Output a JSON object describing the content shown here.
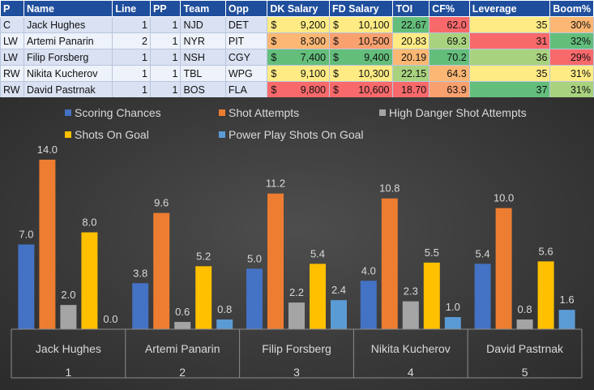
{
  "table": {
    "headers": [
      "P",
      "Name",
      "Line",
      "PP",
      "Team",
      "Opp",
      "DK Salary",
      "FD Salary",
      "TOI",
      "CF%",
      "Leverage",
      "Boom%"
    ],
    "currency_symbol": "$",
    "rows": [
      {
        "pos": "C",
        "name": "Jack Hughes",
        "line": "1",
        "pp": "1",
        "team": "NJD",
        "opp": "DET",
        "dk": "9,200",
        "fd": "10,100",
        "toi": "22.67",
        "cf": "62.0",
        "leverage": "35",
        "boom": "30%",
        "colors": {
          "dk": "#ffeb84",
          "fd": "#ffeb84",
          "toi": "#63be7b",
          "cf": "#f8696b",
          "leverage": "#ffeb84",
          "boom": "#fbb773"
        }
      },
      {
        "pos": "LW",
        "name": "Artemi Panarin",
        "line": "2",
        "pp": "1",
        "team": "NYR",
        "opp": "PIT",
        "dk": "8,300",
        "fd": "10,500",
        "toi": "20.83",
        "cf": "69.3",
        "leverage": "31",
        "boom": "32%",
        "colors": {
          "dk": "#fbb773",
          "fd": "#f9a06f",
          "toi": "#ffeb84",
          "cf": "#a9d27f",
          "leverage": "#f8696b",
          "boom": "#63be7b"
        }
      },
      {
        "pos": "LW",
        "name": "Filip Forsberg",
        "line": "1",
        "pp": "1",
        "team": "NSH",
        "opp": "CGY",
        "dk": "7,400",
        "fd": "9,400",
        "toi": "20.19",
        "cf": "70.2",
        "leverage": "36",
        "boom": "29%",
        "colors": {
          "dk": "#63be7b",
          "fd": "#63be7b",
          "toi": "#fbb773",
          "cf": "#63be7b",
          "leverage": "#a9d27f",
          "boom": "#f8696b"
        }
      },
      {
        "pos": "RW",
        "name": "Nikita Kucherov",
        "line": "1",
        "pp": "1",
        "team": "TBL",
        "opp": "WPG",
        "dk": "9,100",
        "fd": "10,300",
        "toi": "22.15",
        "cf": "64.3",
        "leverage": "35",
        "boom": "31%",
        "colors": {
          "dk": "#ffeb84",
          "fd": "#ffeb84",
          "toi": "#a9d27f",
          "cf": "#fbb773",
          "leverage": "#ffeb84",
          "boom": "#ffeb84"
        }
      },
      {
        "pos": "RW",
        "name": "David Pastrnak",
        "line": "1",
        "pp": "1",
        "team": "BOS",
        "opp": "FLA",
        "dk": "9,800",
        "fd": "10,600",
        "toi": "18.70",
        "cf": "63.9",
        "leverage": "37",
        "boom": "31%",
        "colors": {
          "dk": "#f8696b",
          "fd": "#f8696b",
          "toi": "#f8696b",
          "cf": "#f9a06f",
          "leverage": "#63be7b",
          "boom": "#a9d27f"
        }
      }
    ]
  },
  "chart_data": {
    "type": "bar",
    "categories": [
      "Jack Hughes",
      "Artemi Panarin",
      "Filip Forsberg",
      "Nikita Kucherov",
      "David Pastrnak"
    ],
    "category_numbers": [
      "1",
      "2",
      "3",
      "4",
      "5"
    ],
    "ylim": [
      0,
      15
    ],
    "grid": false,
    "legend_position": "top",
    "series": [
      {
        "name": "Scoring Chances",
        "color": "#4472c4",
        "values": [
          7.0,
          3.8,
          5.0,
          4.0,
          5.4
        ]
      },
      {
        "name": "Shot Attempts",
        "color": "#ed7d31",
        "values": [
          14.0,
          9.6,
          11.2,
          10.8,
          10.0
        ]
      },
      {
        "name": "High Danger Shot Attempts",
        "color": "#a5a5a5",
        "values": [
          2.0,
          0.6,
          2.2,
          2.3,
          0.8
        ]
      },
      {
        "name": "Shots On Goal",
        "color": "#ffc000",
        "values": [
          8.0,
          5.2,
          5.4,
          5.5,
          5.6
        ]
      },
      {
        "name": "Power Play Shots On Goal",
        "color": "#5b9bd5",
        "values": [
          0.0,
          0.8,
          2.4,
          1.0,
          1.6
        ]
      }
    ]
  }
}
